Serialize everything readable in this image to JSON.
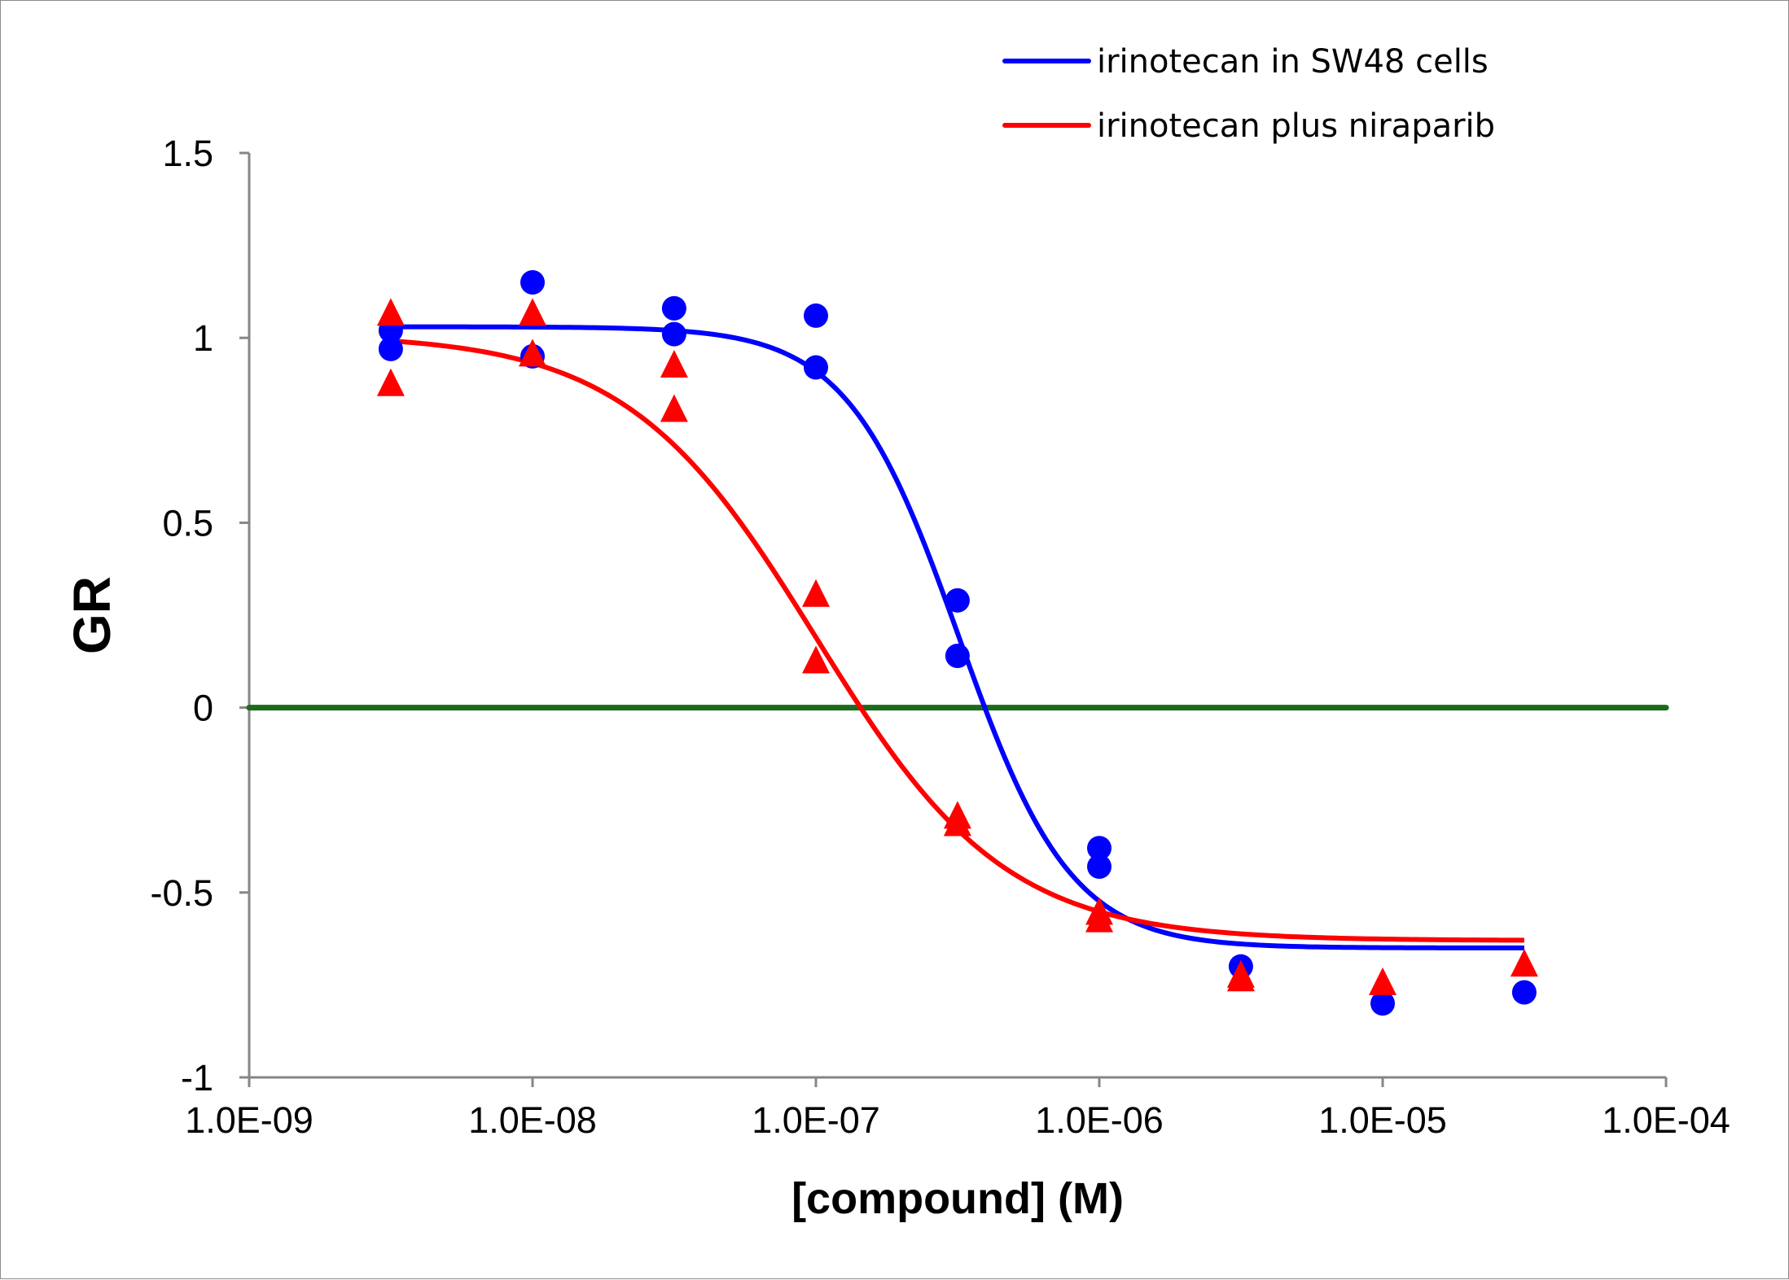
{
  "chart_data": {
    "type": "scatter",
    "xlabel": "[compound] (M)",
    "ylabel": "GR",
    "xscale": "log",
    "xlim": [
      1e-09,
      0.0001
    ],
    "ylim": [
      -1,
      1.5
    ],
    "x_ticks": [
      "1.0E-09",
      "1.0E-08",
      "1.0E-07",
      "1.0E-06",
      "1.0E-05",
      "1.0E-04"
    ],
    "y_ticks": [
      "1.5",
      "1",
      "0.5",
      "0",
      "-0.5",
      "-1"
    ],
    "legend_position": "top-right",
    "reference_line": {
      "y": 0,
      "color": "#1a6b1a"
    },
    "series": [
      {
        "name": "irinotecan in SW48 cells",
        "color": "#0000ff",
        "marker": "circle",
        "points": [
          [
            3.16e-09,
            1.02
          ],
          [
            3.16e-09,
            0.97
          ],
          [
            1e-08,
            1.15
          ],
          [
            1e-08,
            0.95
          ],
          [
            3.16e-08,
            1.08
          ],
          [
            3.16e-08,
            1.01
          ],
          [
            1e-07,
            1.06
          ],
          [
            1e-07,
            0.92
          ],
          [
            3.16e-07,
            0.29
          ],
          [
            3.16e-07,
            0.14
          ],
          [
            1e-06,
            -0.38
          ],
          [
            1e-06,
            -0.43
          ],
          [
            3.16e-06,
            -0.7
          ],
          [
            1e-05,
            -0.8
          ],
          [
            3.16e-05,
            -0.77
          ]
        ],
        "fit": {
          "top": 1.03,
          "bottom": -0.65,
          "ec50": 3.2e-07,
          "hill": 2.2,
          "x_range": [
            3.16e-09,
            3.16e-05
          ]
        }
      },
      {
        "name": "irinotecan plus niraparib",
        "color": "#ff0000",
        "marker": "triangle",
        "points": [
          [
            3.16e-09,
            1.07
          ],
          [
            3.16e-09,
            0.88
          ],
          [
            1e-08,
            1.07
          ],
          [
            1e-08,
            0.96
          ],
          [
            3.16e-08,
            0.93
          ],
          [
            3.16e-08,
            0.81
          ],
          [
            1e-07,
            0.31
          ],
          [
            1e-07,
            0.13
          ],
          [
            3.16e-07,
            -0.29
          ],
          [
            3.16e-07,
            -0.31
          ],
          [
            1e-06,
            -0.55
          ],
          [
            1e-06,
            -0.57
          ],
          [
            3.16e-06,
            -0.72
          ],
          [
            3.16e-06,
            -0.73
          ],
          [
            1e-05,
            -0.74
          ],
          [
            3.16e-05,
            -0.69
          ]
        ],
        "fit": {
          "top": 1.01,
          "bottom": -0.63,
          "ec50": 1e-07,
          "hill": 1.3,
          "x_range": [
            3.16e-09,
            3.16e-05
          ]
        }
      }
    ]
  }
}
